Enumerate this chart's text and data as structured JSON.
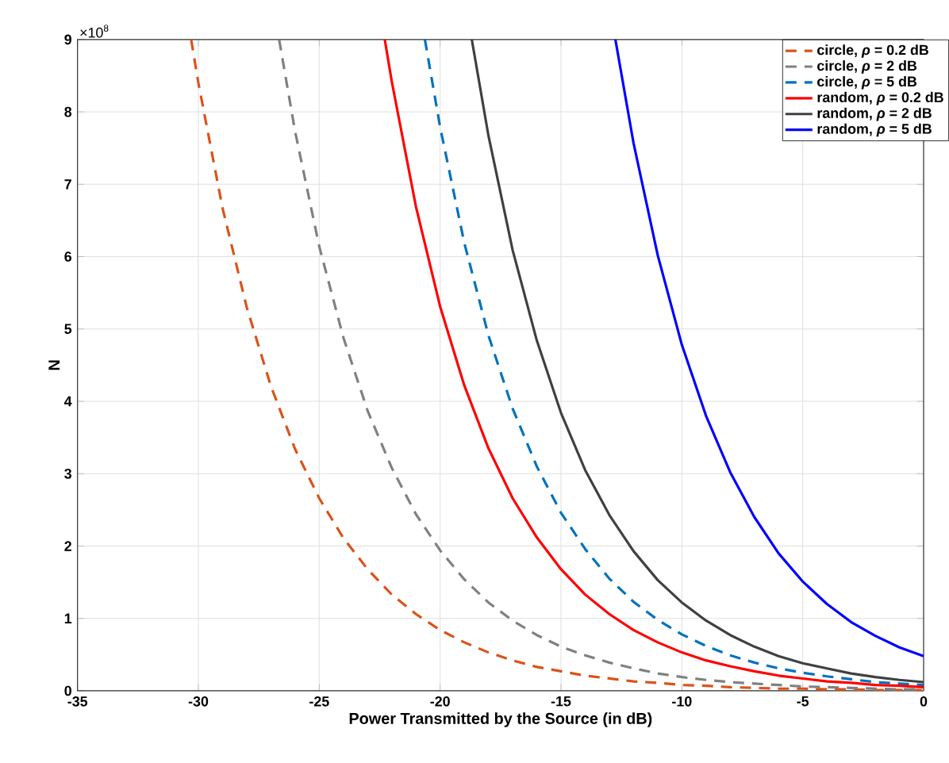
{
  "chart_data": {
    "type": "line",
    "xlabel": "Power Transmitted by the Source (in dB)",
    "ylabel": "N",
    "annotations": [
      "×10$^{8}$"
    ],
    "xlim": [
      -35,
      0
    ],
    "ylim": [
      0,
      9
    ],
    "xticks": [
      -35,
      -30,
      -25,
      -20,
      -15,
      -10,
      -5,
      0
    ],
    "yticks": [
      0,
      1,
      2,
      3,
      4,
      5,
      6,
      7,
      8,
      9
    ],
    "grid": true,
    "legend": "top right",
    "marker": "none",
    "series": [
      {
        "name": "circle, *ρ* = 0.2 dB",
        "color": "#d95319",
        "line_style": "dashed",
        "x": [
          -30.3,
          -30,
          -29,
          -28,
          -27,
          -26,
          -25,
          -24,
          -23,
          -22,
          -21,
          -20,
          -19,
          -18,
          -17,
          -16,
          -15,
          -14,
          -13,
          -12,
          -11,
          -10,
          -9,
          -8,
          -7,
          -6,
          -5,
          -4,
          -3,
          -2,
          -1,
          0
        ],
        "values": [
          9,
          8.4,
          6.67,
          5.3,
          4.21,
          3.34,
          2.66,
          2.11,
          1.68,
          1.33,
          1.06,
          0.84,
          0.67,
          0.53,
          0.42,
          0.33,
          0.27,
          0.21,
          0.17,
          0.13,
          0.11,
          0.08,
          0.07,
          0.05,
          0.04,
          0.03,
          0.03,
          0.02,
          0.02,
          0.01,
          0.01,
          0.01
        ]
      },
      {
        "name": "circle, *ρ* = 2 dB",
        "color": "#808080",
        "line_style": "dashed",
        "x": [
          -26.66,
          -26,
          -25,
          -24,
          -23,
          -22,
          -21,
          -20,
          -19,
          -18,
          -17,
          -16,
          -15,
          -14,
          -13,
          -12,
          -11,
          -10,
          -9,
          -8,
          -7,
          -6,
          -5,
          -4,
          -3,
          -2,
          -1,
          0
        ],
        "values": [
          9,
          7.73,
          6.14,
          4.88,
          3.87,
          3.08,
          2.44,
          1.94,
          1.54,
          1.22,
          0.97,
          0.77,
          0.61,
          0.49,
          0.39,
          0.31,
          0.24,
          0.19,
          0.15,
          0.12,
          0.1,
          0.08,
          0.06,
          0.05,
          0.04,
          0.03,
          0.02,
          0.02
        ]
      },
      {
        "name": "circle, *ρ* = 5 dB",
        "color": "#0072bd",
        "line_style": "dashed",
        "x": [
          -20.63,
          -20,
          -19,
          -18,
          -17,
          -16,
          -15,
          -14,
          -13,
          -12,
          -11,
          -10,
          -9,
          -8,
          -7,
          -6,
          -5,
          -4,
          -3,
          -2,
          -1,
          0
        ],
        "values": [
          9,
          7.79,
          6.19,
          4.91,
          3.9,
          3.1,
          2.46,
          1.96,
          1.55,
          1.23,
          0.98,
          0.78,
          0.62,
          0.49,
          0.39,
          0.31,
          0.25,
          0.2,
          0.16,
          0.12,
          0.1,
          0.08
        ]
      },
      {
        "name": "random, *ρ* = 0.2 dB",
        "color": "#ff0000",
        "line_style": "solid",
        "x": [
          -22.29,
          -22,
          -21,
          -20,
          -19,
          -18,
          -17,
          -16,
          -15,
          -14,
          -13,
          -12,
          -11,
          -10,
          -9,
          -8,
          -7,
          -6,
          -5,
          -4,
          -3,
          -2,
          -1,
          0
        ],
        "values": [
          9,
          8.42,
          6.69,
          5.31,
          4.22,
          3.35,
          2.66,
          2.12,
          1.68,
          1.33,
          1.06,
          0.84,
          0.67,
          0.53,
          0.42,
          0.34,
          0.27,
          0.21,
          0.17,
          0.13,
          0.11,
          0.08,
          0.07,
          0.05
        ]
      },
      {
        "name": "random, *ρ* = 2 dB",
        "color": "#404040",
        "line_style": "solid",
        "x": [
          -18.69,
          -18,
          -17,
          -16,
          -15,
          -14,
          -13,
          -12,
          -11,
          -10,
          -9,
          -8,
          -7,
          -6,
          -5,
          -4,
          -3,
          -2,
          -1,
          0
        ],
        "values": [
          9,
          7.67,
          6.09,
          4.84,
          3.84,
          3.05,
          2.43,
          1.93,
          1.53,
          1.22,
          0.97,
          0.77,
          0.61,
          0.48,
          0.38,
          0.31,
          0.24,
          0.19,
          0.15,
          0.12
        ]
      },
      {
        "name": "random, *ρ* = 5 dB",
        "color": "#0000ff",
        "line_style": "solid",
        "x": [
          -12.75,
          -12,
          -11,
          -10,
          -9,
          -8,
          -7,
          -6,
          -5,
          -4,
          -3,
          -2,
          -1,
          0
        ],
        "values": [
          9,
          7.57,
          6.02,
          4.78,
          3.8,
          3.02,
          2.4,
          1.9,
          1.51,
          1.2,
          0.95,
          0.76,
          0.6,
          0.48
        ]
      }
    ]
  }
}
